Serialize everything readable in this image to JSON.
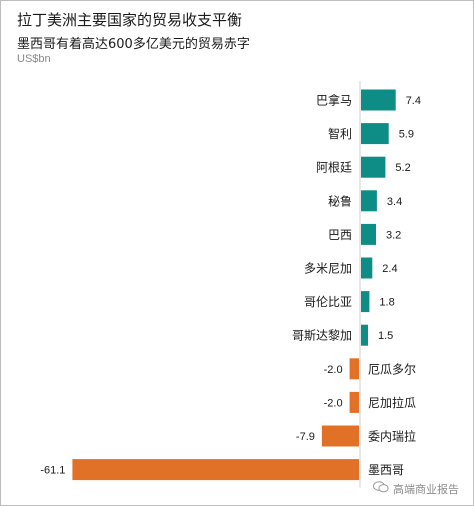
{
  "header": {
    "title": "拉丁美洲主要国家的贸易收支平衡",
    "subtitle": "墨西哥有着高达600多亿美元的贸易赤字",
    "unit": "US$bn"
  },
  "watermark": {
    "icon": "wechat-icon",
    "text": "高端商业报告"
  },
  "colors": {
    "positive": "#0e8c86",
    "negative": "#e07127",
    "axis": "#cfcfcf"
  },
  "chart_data": {
    "type": "bar",
    "orientation": "horizontal",
    "title": "拉丁美洲主要国家的贸易收支平衡",
    "subtitle": "墨西哥有着高达600多亿美元的贸易赤字",
    "ylabel": "US$bn",
    "categories": [
      "巴拿马",
      "智利",
      "阿根廷",
      "秘鲁",
      "巴西",
      "多米尼加",
      "哥伦比亚",
      "哥斯达黎加",
      "厄瓜多尔",
      "尼加拉瓜",
      "委内瑞拉",
      "墨西哥"
    ],
    "values": [
      7.4,
      5.9,
      5.2,
      3.4,
      3.2,
      2.4,
      1.8,
      1.5,
      -2.0,
      -2.0,
      -7.9,
      -61.1
    ],
    "value_labels": [
      "7.4",
      "5.9",
      "5.2",
      "3.4",
      "3.2",
      "2.4",
      "1.8",
      "1.5",
      "-2.0",
      "-2.0",
      "-7.9",
      "-61.1"
    ],
    "xlim": [
      -61.1,
      7.4
    ],
    "grid": false,
    "legend": "none"
  }
}
